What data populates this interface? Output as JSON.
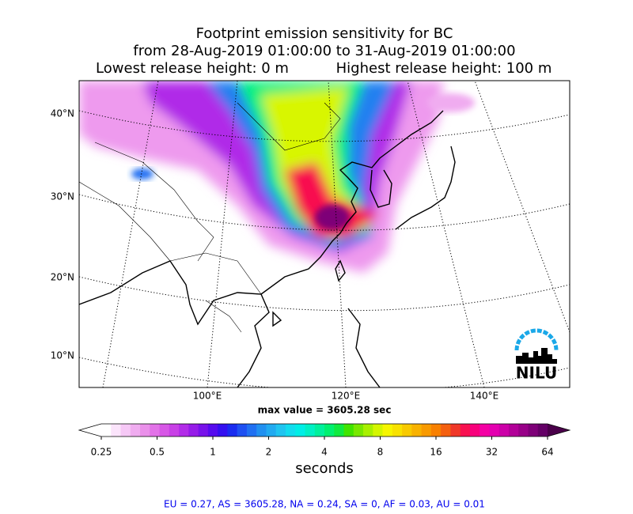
{
  "title": {
    "line1": "Footprint emission sensitivity for BC",
    "line2": "from 28-Aug-2019 01:00:00 to 31-Aug-2019 01:00:00",
    "release_low": "Lowest release height: 0 m",
    "release_high": "Highest release height: 100 m"
  },
  "map": {
    "lat_labels": [
      "40°N",
      "30°N",
      "20°N",
      "10°N"
    ],
    "lon_labels": [
      "100°E",
      "120°E",
      "140°E"
    ],
    "max_value_label": "max value = 3605.28 sec",
    "logo": "NILU"
  },
  "colorbar": {
    "scale": "log",
    "lim": [
      0.25,
      64
    ],
    "ticks": [
      0.25,
      0.5,
      1,
      2,
      4,
      8,
      16,
      32,
      64
    ],
    "label": "seconds",
    "under": "#ffffff",
    "over": "#4a004a",
    "colors": [
      "#ffffff",
      "#fbe4fb",
      "#f6c8f6",
      "#f0acf0",
      "#ea90ea",
      "#e272e8",
      "#d757e6",
      "#c840e6",
      "#b22ce8",
      "#961ce8",
      "#7812ea",
      "#560cee",
      "#3410f0",
      "#1a2cf0",
      "#1e50f2",
      "#2070f2",
      "#2190f0",
      "#22aaf0",
      "#20c4f0",
      "#12dcee",
      "#00eee6",
      "#00f0c4",
      "#00f09c",
      "#00f070",
      "#10ea40",
      "#40e400",
      "#78e800",
      "#a8f000",
      "#d4f600",
      "#f6f600",
      "#f8e200",
      "#f8ca00",
      "#f8b200",
      "#f89a00",
      "#f88000",
      "#f46010",
      "#f03828",
      "#f81050",
      "#f8007c",
      "#f400a4",
      "#e400b0",
      "#cc00a8",
      "#b20098",
      "#980088",
      "#7e0078",
      "#640066"
    ]
  },
  "footer": "EU = 0.27,  AS = 3605.28,  NA = 0.24,  SA = 0,  AF = 0.03,  AU = 0.01"
}
